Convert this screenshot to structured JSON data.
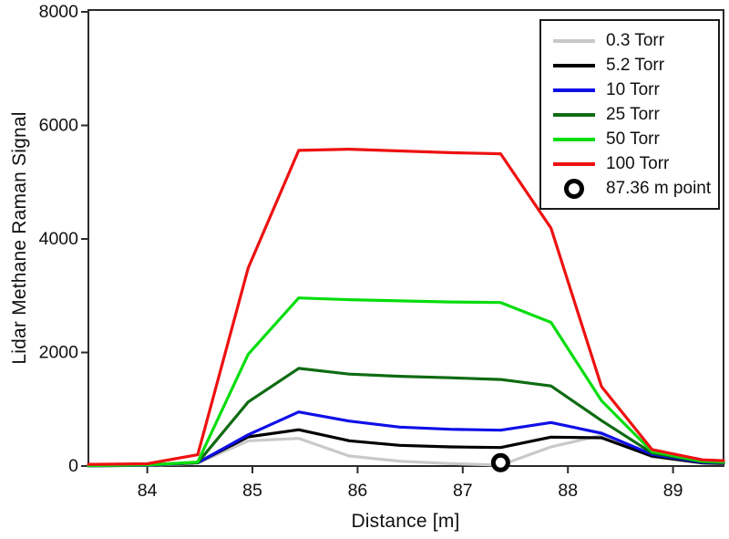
{
  "chart_data": {
    "type": "line",
    "title": "",
    "xlabel": "Distance [m]",
    "ylabel": "Lidar Methane Raman Signal",
    "xlim": [
      83.44,
      89.48
    ],
    "ylim": [
      0,
      8000
    ],
    "x_ticks": [
      84,
      85,
      86,
      87,
      88,
      89
    ],
    "y_ticks": [
      0,
      2000,
      4000,
      6000,
      8000
    ],
    "grid": false,
    "legend_position": "top-right",
    "axis_color": "#2a2a2a",
    "x": [
      83.44,
      83.52,
      84.0,
      84.48,
      84.96,
      85.44,
      85.92,
      86.4,
      86.88,
      87.36,
      87.84,
      88.32,
      88.8,
      89.28,
      89.48
    ],
    "series": [
      {
        "name": "0.3 Torr",
        "color": "#c9c9c9",
        "values": [
          5,
          5,
          10,
          50,
          445,
          487,
          177,
          85,
          43,
          16,
          337,
          541,
          160,
          50,
          40
        ]
      },
      {
        "name": "5.2 Torr",
        "color": "#000000",
        "values": [
          5,
          5,
          15,
          60,
          514,
          640,
          445,
          365,
          337,
          326,
          509,
          498,
          175,
          55,
          45
        ]
      },
      {
        "name": "10 Torr",
        "color": "#0f0fe8",
        "values": [
          8,
          8,
          15,
          60,
          551,
          952,
          792,
          686,
          647,
          631,
          766,
          578,
          205,
          65,
          55
        ]
      },
      {
        "name": "25 Torr",
        "color": "#0e6b12",
        "values": [
          8,
          8,
          20,
          60,
          1130,
          1720,
          1620,
          1580,
          1555,
          1525,
          1410,
          800,
          230,
          75,
          60
        ]
      },
      {
        "name": "50 Torr",
        "color": "#07dd0e",
        "values": [
          10,
          10,
          20,
          70,
          1970,
          2960,
          2930,
          2910,
          2890,
          2880,
          2530,
          1150,
          255,
          85,
          70
        ]
      },
      {
        "name": "100 Torr",
        "color": "#ee1111",
        "values": [
          30,
          30,
          40,
          200,
          3490,
          5560,
          5580,
          5550,
          5520,
          5500,
          4190,
          1400,
          290,
          110,
          95
        ]
      }
    ],
    "marker_point": {
      "label": "87.36 m point",
      "x": 87.36,
      "y": 60,
      "color": "#000000",
      "fill": "#ffffff"
    }
  }
}
